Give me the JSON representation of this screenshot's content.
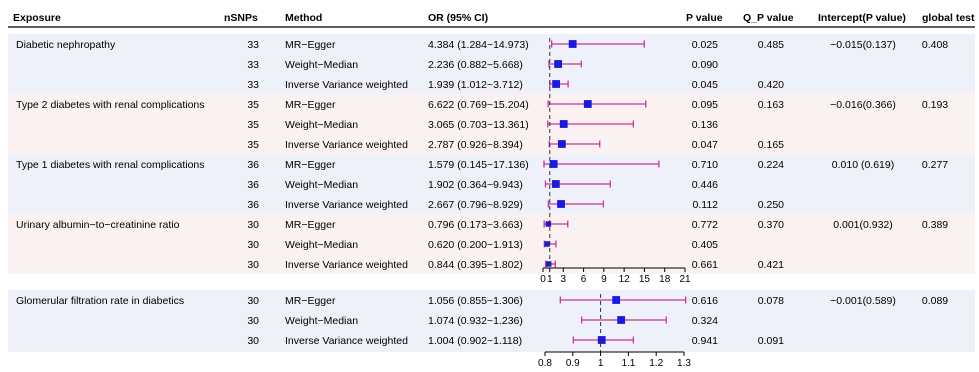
{
  "chart_data": {
    "type": "forest",
    "columns": [
      "Exposure",
      "nSNPs",
      "Method",
      "OR (95% CI)",
      "P value",
      "Q_P value",
      "Intercept(P value)",
      "global test"
    ],
    "colors": {
      "band_blue": "#eef1fa",
      "band_pink": "#fcf1f1",
      "ci_line": "#c8359b",
      "point": "#1a1adf",
      "reference": "#333333"
    },
    "panels": [
      {
        "exposure": "Diabetic nephropathy",
        "intercept": "−0.015(0.137)",
        "global_test": "0.408",
        "band": "blue",
        "rows": [
          {
            "nsnps": "33",
            "method": "MR−Egger",
            "or_text": "4.384 (1.284~14.973)",
            "p": "0.025",
            "qp": "0.485",
            "or": 4.384,
            "lo": 1.284,
            "hi": 14.973
          },
          {
            "nsnps": "33",
            "method": "Weight−Median",
            "or_text": "2.236 (0.882~5.668)",
            "p": "0.090",
            "qp": "",
            "or": 2.236,
            "lo": 0.882,
            "hi": 5.668
          },
          {
            "nsnps": "33",
            "method": "Inverse Variance weighted",
            "or_text": "1.939 (1.012~3.712)",
            "p": "0.045",
            "qp": "0.420",
            "or": 1.939,
            "lo": 1.012,
            "hi": 3.712
          }
        ]
      },
      {
        "exposure": "Type 2 diabetes with renal complications",
        "intercept": "−0.016(0.366)",
        "global_test": "0.193",
        "band": "pink",
        "rows": [
          {
            "nsnps": "35",
            "method": "MR−Egger",
            "or_text": "6.622 (0.769~15.204)",
            "p": "0.095",
            "qp": "0.163",
            "or": 6.622,
            "lo": 0.769,
            "hi": 15.204
          },
          {
            "nsnps": "35",
            "method": "Weight−Median",
            "or_text": "3.065 (0.703~13.361)",
            "p": "0.136",
            "qp": "",
            "or": 3.065,
            "lo": 0.703,
            "hi": 13.361
          },
          {
            "nsnps": "35",
            "method": "Inverse Variance weighted",
            "or_text": "2.787 (0.926~8.394)",
            "p": "0.047",
            "qp": "0.165",
            "or": 2.787,
            "lo": 0.926,
            "hi": 8.394
          }
        ]
      },
      {
        "exposure": "Type 1 diabetes with renal complications",
        "intercept": "0.010 (0.619)",
        "global_test": "0.277",
        "band": "blue",
        "rows": [
          {
            "nsnps": "36",
            "method": "MR−Egger",
            "or_text": "1.579 (0.145~17.136)",
            "p": "0.710",
            "qp": "0.224",
            "or": 1.579,
            "lo": 0.145,
            "hi": 17.136
          },
          {
            "nsnps": "36",
            "method": "Weight−Median",
            "or_text": "1.902 (0.364~9.943)",
            "p": "0.446",
            "qp": "",
            "or": 1.902,
            "lo": 0.364,
            "hi": 9.943
          },
          {
            "nsnps": "36",
            "method": "Inverse Variance weighted",
            "or_text": "2.667 (0.796~8.929)",
            "p": "0.112",
            "qp": "0.250",
            "or": 2.667,
            "lo": 0.796,
            "hi": 8.929
          }
        ]
      },
      {
        "exposure": "Urinary albumin−to−creatinine ratio",
        "intercept": "0.001(0.932)",
        "global_test": "0.389",
        "band": "pink",
        "rows": [
          {
            "nsnps": "30",
            "method": "MR−Egger",
            "or_text": "0.796 (0.173~3.663)",
            "p": "0.772",
            "qp": "0.370",
            "or": 0.796,
            "lo": 0.173,
            "hi": 3.663
          },
          {
            "nsnps": "30",
            "method": "Weight−Median",
            "or_text": "0.620 (0.200~1.913)",
            "p": "0.405",
            "qp": "",
            "or": 0.62,
            "lo": 0.2,
            "hi": 1.913
          },
          {
            "nsnps": "30",
            "method": "Inverse Variance weighted",
            "or_text": "0.844 (0.395~1.802)",
            "p": "0.661",
            "qp": "0.421",
            "or": 0.844,
            "lo": 0.395,
            "hi": 1.802
          }
        ]
      },
      {
        "exposure": "Glomerular filtration rate in diabetics",
        "intercept": "−0.001(0.589)",
        "global_test": "0.089",
        "band": "blue",
        "rows": [
          {
            "nsnps": "30",
            "method": "MR−Egger",
            "or_text": "1.056 (0.855~1.306)",
            "p": "0.616",
            "qp": "0.078",
            "or": 1.056,
            "lo": 0.855,
            "hi": 1.306
          },
          {
            "nsnps": "30",
            "method": "Weight−Median",
            "or_text": "1.074 (0.932~1.236)",
            "p": "0.324",
            "qp": "",
            "or": 1.074,
            "lo": 0.932,
            "hi": 1.236
          },
          {
            "nsnps": "30",
            "method": "Inverse Variance weighted",
            "or_text": "1.004 (0.902~1.118)",
            "p": "0.941",
            "qp": "0.091",
            "or": 1.004,
            "lo": 0.902,
            "hi": 1.118
          }
        ]
      }
    ],
    "axes": [
      {
        "id": "upper",
        "applies_to_panels": [
          0,
          1,
          2,
          3
        ],
        "range": [
          0,
          21
        ],
        "reference": 1,
        "ticks": [
          0,
          1,
          3,
          6,
          9,
          12,
          15,
          18,
          21
        ],
        "tick_labels": [
          "0",
          "1",
          "3",
          "6",
          "9",
          "12",
          "15",
          "18",
          "21"
        ]
      },
      {
        "id": "lower",
        "applies_to_panels": [
          4
        ],
        "range": [
          0.8,
          1.3
        ],
        "reference": 1,
        "ticks": [
          0.8,
          0.9,
          1,
          1.1,
          1.2,
          1.3
        ],
        "tick_labels": [
          "0.8",
          "0.9",
          "1",
          "1.1",
          "1.2",
          "1.3"
        ]
      }
    ]
  }
}
